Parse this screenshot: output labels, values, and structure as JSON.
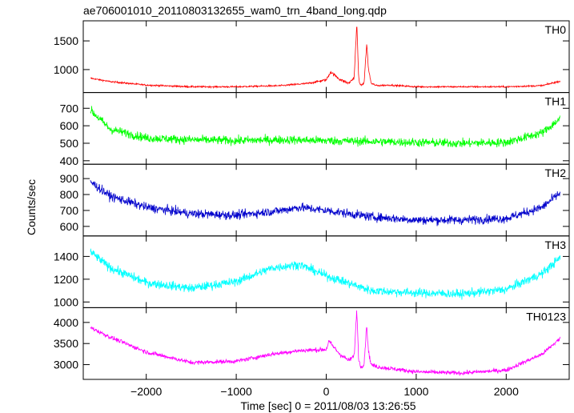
{
  "chart_data": {
    "type": "line",
    "title": "ae706001010_20110803132655_wam0_trn_4band_long.qdp",
    "xlabel": "Time [sec] 0 = 2011/08/03 13:26:55",
    "ylabel": "Counts/sec",
    "xlim": [
      -2700,
      2700
    ],
    "x_ticks": [
      -2000,
      -1000,
      0,
      1000,
      2000
    ],
    "x_tick_labels": [
      "−2000",
      "−1000",
      "0",
      "1000",
      "2000"
    ],
    "x_data_range": [
      -2620,
      2600
    ],
    "grid": false,
    "panels": [
      {
        "name": "TH0",
        "color": "#ff0000",
        "ylim": [
          600,
          1850
        ],
        "ticks": [
          1000,
          1500
        ],
        "noise": 25,
        "x": [
          -2620,
          -2400,
          -2000,
          -1500,
          -1000,
          -500,
          -200,
          0,
          50,
          150,
          250,
          310,
          340,
          360,
          380,
          420,
          450,
          470,
          500,
          560,
          700,
          1000,
          1500,
          2000,
          2400,
          2600
        ],
        "y": [
          850,
          790,
          730,
          700,
          700,
          720,
          760,
          820,
          960,
          830,
          760,
          860,
          1800,
          870,
          720,
          760,
          1450,
          1000,
          760,
          720,
          730,
          700,
          700,
          700,
          720,
          800
        ],
        "noise_profile": [
          25,
          25,
          25,
          25,
          25,
          25,
          30,
          40,
          45,
          40,
          40,
          50,
          60,
          50,
          35,
          35,
          60,
          50,
          35,
          25,
          25,
          25,
          25,
          25,
          25,
          30
        ]
      },
      {
        "name": "TH1",
        "color": "#00ff00",
        "ylim": [
          380,
          790
        ],
        "ticks": [
          400,
          500,
          600,
          700
        ],
        "noise": 45,
        "x": [
          -2620,
          -2400,
          -2000,
          -1500,
          -1000,
          -500,
          0,
          500,
          1000,
          1500,
          2000,
          2400,
          2600
        ],
        "y": [
          690,
          580,
          530,
          520,
          515,
          520,
          515,
          510,
          505,
          500,
          505,
          560,
          640
        ],
        "noise_profile": [
          45,
          45,
          45,
          45,
          45,
          45,
          45,
          45,
          45,
          45,
          45,
          45,
          45
        ]
      },
      {
        "name": "TH2",
        "color": "#0000cc",
        "ylim": [
          540,
          990
        ],
        "ticks": [
          600,
          700,
          800,
          900
        ],
        "noise": 50,
        "x": [
          -2620,
          -2400,
          -2000,
          -1500,
          -1000,
          -500,
          -300,
          0,
          500,
          1000,
          1500,
          2000,
          2400,
          2600
        ],
        "y": [
          880,
          790,
          720,
          680,
          670,
          700,
          720,
          700,
          660,
          640,
          640,
          650,
          720,
          810
        ],
        "noise_profile": [
          50,
          50,
          50,
          50,
          50,
          50,
          50,
          50,
          50,
          50,
          50,
          50,
          50,
          50
        ]
      },
      {
        "name": "TH3",
        "color": "#00ffff",
        "ylim": [
          950,
          1580
        ],
        "ticks": [
          1000,
          1200,
          1400
        ],
        "noise": 70,
        "x": [
          -2620,
          -2400,
          -2000,
          -1500,
          -1000,
          -600,
          -300,
          0,
          500,
          1000,
          1500,
          2000,
          2400,
          2600
        ],
        "y": [
          1440,
          1300,
          1170,
          1120,
          1180,
          1300,
          1330,
          1230,
          1100,
          1080,
          1070,
          1110,
          1250,
          1390
        ],
        "noise_profile": [
          70,
          70,
          70,
          70,
          70,
          70,
          70,
          70,
          70,
          70,
          70,
          70,
          70,
          70
        ]
      },
      {
        "name": "TH0123",
        "color": "#ff00ff",
        "ylim": [
          2650,
          4350
        ],
        "ticks": [
          3000,
          3500,
          4000
        ],
        "noise": 90,
        "x": [
          -2620,
          -2400,
          -2000,
          -1500,
          -1000,
          -600,
          -300,
          0,
          30,
          150,
          250,
          310,
          340,
          360,
          380,
          420,
          450,
          470,
          500,
          560,
          1000,
          1500,
          2000,
          2400,
          2600
        ],
        "y": [
          3880,
          3650,
          3300,
          3050,
          3080,
          3250,
          3330,
          3360,
          3550,
          3250,
          3100,
          3200,
          4300,
          3150,
          2950,
          3000,
          3950,
          3300,
          3000,
          2950,
          2830,
          2800,
          2870,
          3250,
          3620
        ],
        "noise_profile": [
          90,
          90,
          90,
          90,
          90,
          90,
          90,
          100,
          110,
          100,
          90,
          110,
          130,
          110,
          90,
          90,
          130,
          110,
          90,
          90,
          90,
          90,
          90,
          90,
          90
        ]
      }
    ]
  }
}
